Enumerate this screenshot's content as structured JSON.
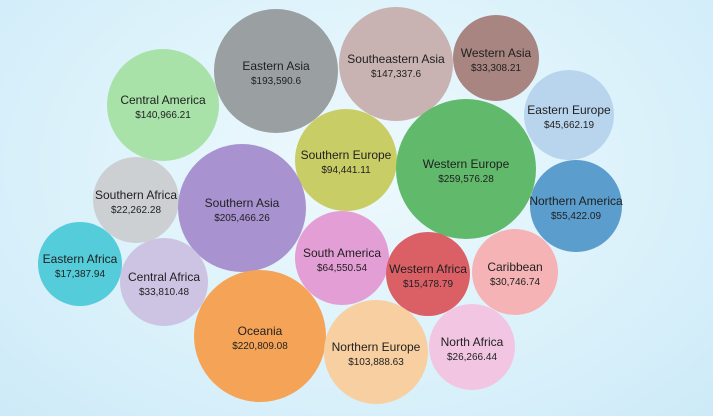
{
  "chart_data": {
    "type": "bubble",
    "series": [
      {
        "name": "Eastern Asia",
        "value": "$193,590.6",
        "color": "#9a9fa1"
      },
      {
        "name": "Southeastern Asia",
        "value": "$147,337.6",
        "color": "#c9b3b2"
      },
      {
        "name": "Western Asia",
        "value": "$33,308.21",
        "color": "#a88580"
      },
      {
        "name": "Central America",
        "value": "$140,966.21",
        "color": "#a8e2a8"
      },
      {
        "name": "Eastern Europe",
        "value": "$45,662.19",
        "color": "#b9d5ee"
      },
      {
        "name": "Southern Europe",
        "value": "$94,441.11",
        "color": "#c8cd66"
      },
      {
        "name": "Western Europe",
        "value": "$259,576.28",
        "color": "#61b96b"
      },
      {
        "name": "Southern Africa",
        "value": "$22,262.28",
        "color": "#ccd0d2"
      },
      {
        "name": "Southern Asia",
        "value": "$205,466.26",
        "color": "#a893d0"
      },
      {
        "name": "Northern America",
        "value": "$55,422.09",
        "color": "#5b9dcc"
      },
      {
        "name": "South America",
        "value": "$64,550.54",
        "color": "#e49ed6"
      },
      {
        "name": "Western Africa",
        "value": "$15,478.79",
        "color": "#db6066"
      },
      {
        "name": "Caribbean",
        "value": "$30,746.74",
        "color": "#f5b3b5"
      },
      {
        "name": "Eastern Africa",
        "value": "$17,387.94",
        "color": "#55ccd9"
      },
      {
        "name": "Central Africa",
        "value": "$33,810.48",
        "color": "#cdc4e3"
      },
      {
        "name": "Oceania",
        "value": "$220,809.08",
        "color": "#f5a457"
      },
      {
        "name": "Northern Europe",
        "value": "$103,888.63",
        "color": "#f7cfa0"
      },
      {
        "name": "North Africa",
        "value": "$26,266.44",
        "color": "#f2c6e2"
      }
    ]
  }
}
